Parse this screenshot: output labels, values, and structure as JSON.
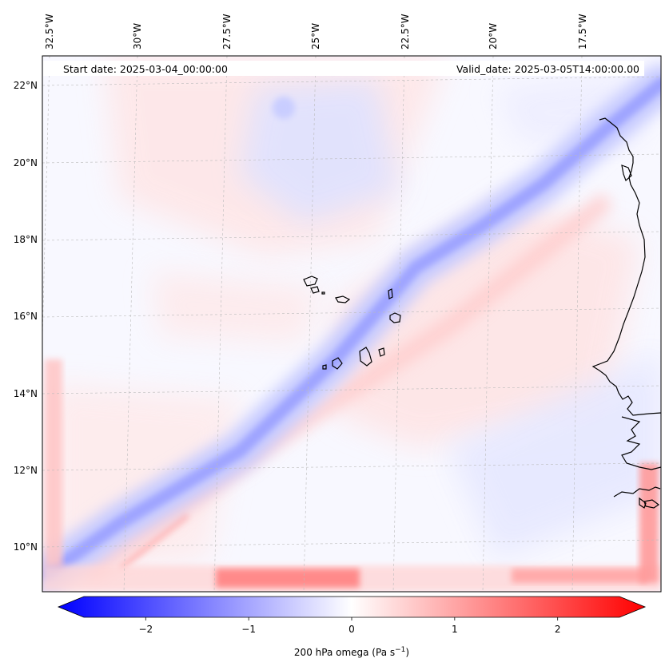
{
  "header": {
    "start_date": "Start date: 2025-03-04_00:00:00",
    "valid_date": "Valid_date: 2025-03-05T14:00:00.00"
  },
  "longitude_labels": [
    "32.5°W",
    "30°W",
    "27.5°W",
    "25°W",
    "22.5°W",
    "20°W",
    "17.5°W"
  ],
  "latitude_labels": [
    "22°N",
    "20°N",
    "18°N",
    "16°N",
    "14°N",
    "12°N",
    "10°N"
  ],
  "colorbar": {
    "ticks": [
      "−2",
      "−1",
      "0",
      "1",
      "2"
    ],
    "label": "200 hPa omega (Pa s",
    "label_exponent": "−1",
    "label_close": ")",
    "range": [
      -2.6,
      2.6
    ],
    "cmap": [
      "#0000ff",
      "#ffffff",
      "#ff0000"
    ]
  },
  "chart_data": {
    "type": "heatmap",
    "title": "200 hPa omega",
    "variable": "omega",
    "level_hPa": 200,
    "units": "Pa s-1",
    "xlim": [
      -32.8,
      -15.7
    ],
    "ylim": [
      8.9,
      22.7
    ],
    "features": [
      {
        "name": "jet-ascent-band",
        "sign": "negative",
        "peak": -0.7,
        "path": [
          [
            -32.5,
            9.3
          ],
          [
            -24.0,
            15.0
          ],
          [
            -19.0,
            18.5
          ],
          [
            -16.5,
            20.8
          ]
        ]
      },
      {
        "name": "northern-blue-patch",
        "sign": "negative",
        "peak": -0.4,
        "center": [
          -24.5,
          20.5
        ]
      },
      {
        "name": "boundary-red-south",
        "sign": "positive",
        "peak": 1.0,
        "center": [
          -26.5,
          9.2
        ]
      },
      {
        "name": "descent-band-southeast",
        "sign": "positive",
        "peak": 0.3,
        "path": [
          [
            -29.5,
            9.5
          ],
          [
            -24.0,
            13.0
          ],
          [
            -18.0,
            17.0
          ]
        ]
      }
    ]
  }
}
